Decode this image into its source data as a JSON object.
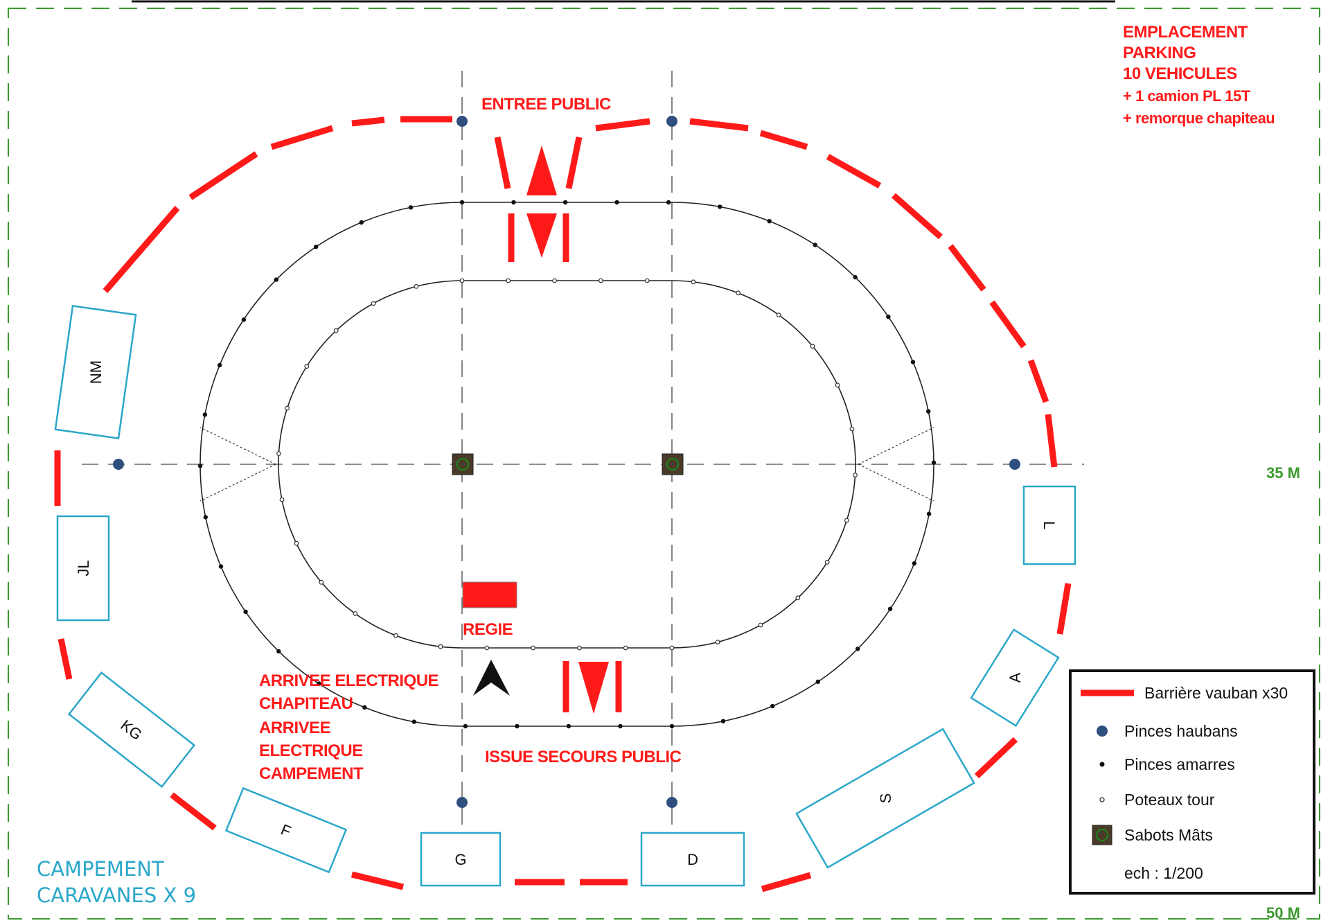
{
  "parking": {
    "line1": "EMPLACEMENT",
    "line2": "PARKING",
    "line3": "10 VEHICULES",
    "line4": "+ 1 camion PL 15T",
    "line5": "+ remorque chapiteau"
  },
  "labels": {
    "entree_public": "ENTREE PUBLIC",
    "regie": "REGIE",
    "issue_secours": "ISSUE SECOURS PUBLIC",
    "arrivee_chapiteau_1": "ARRIVEE ELECTRIQUE",
    "arrivee_chapiteau_2": "CHAPITEAU",
    "arrivee_campement_1": "ARRIVEE",
    "arrivee_campement_2": "ELECTRIQUE",
    "arrivee_campement_3": "CAMPEMENT",
    "dim_35": "35 M",
    "dim_50": "50 M"
  },
  "campement": {
    "line1": "CAMPEMENT",
    "line2": "CARAVANES X 9"
  },
  "caravans": [
    "NM",
    "JL",
    "KG",
    "F",
    "G",
    "D",
    "S",
    "A",
    "L"
  ],
  "legend": {
    "barriere": "Barrière vauban x30",
    "pinces_haubans": "Pinces haubans",
    "pinces_amarres": "Pinces amarres",
    "poteaux_tour": "Poteaux tour",
    "sabots_mats": "Sabots Mâts",
    "echelle": "ech : 1/200"
  },
  "colors": {
    "barrier_red": "#ff1a1a",
    "caravan_blue": "#2aa7c9",
    "haubans_blue": "#2f4f7f",
    "boundary_green": "#3a9a2e",
    "sabot_brown": "#4a3a2a"
  }
}
